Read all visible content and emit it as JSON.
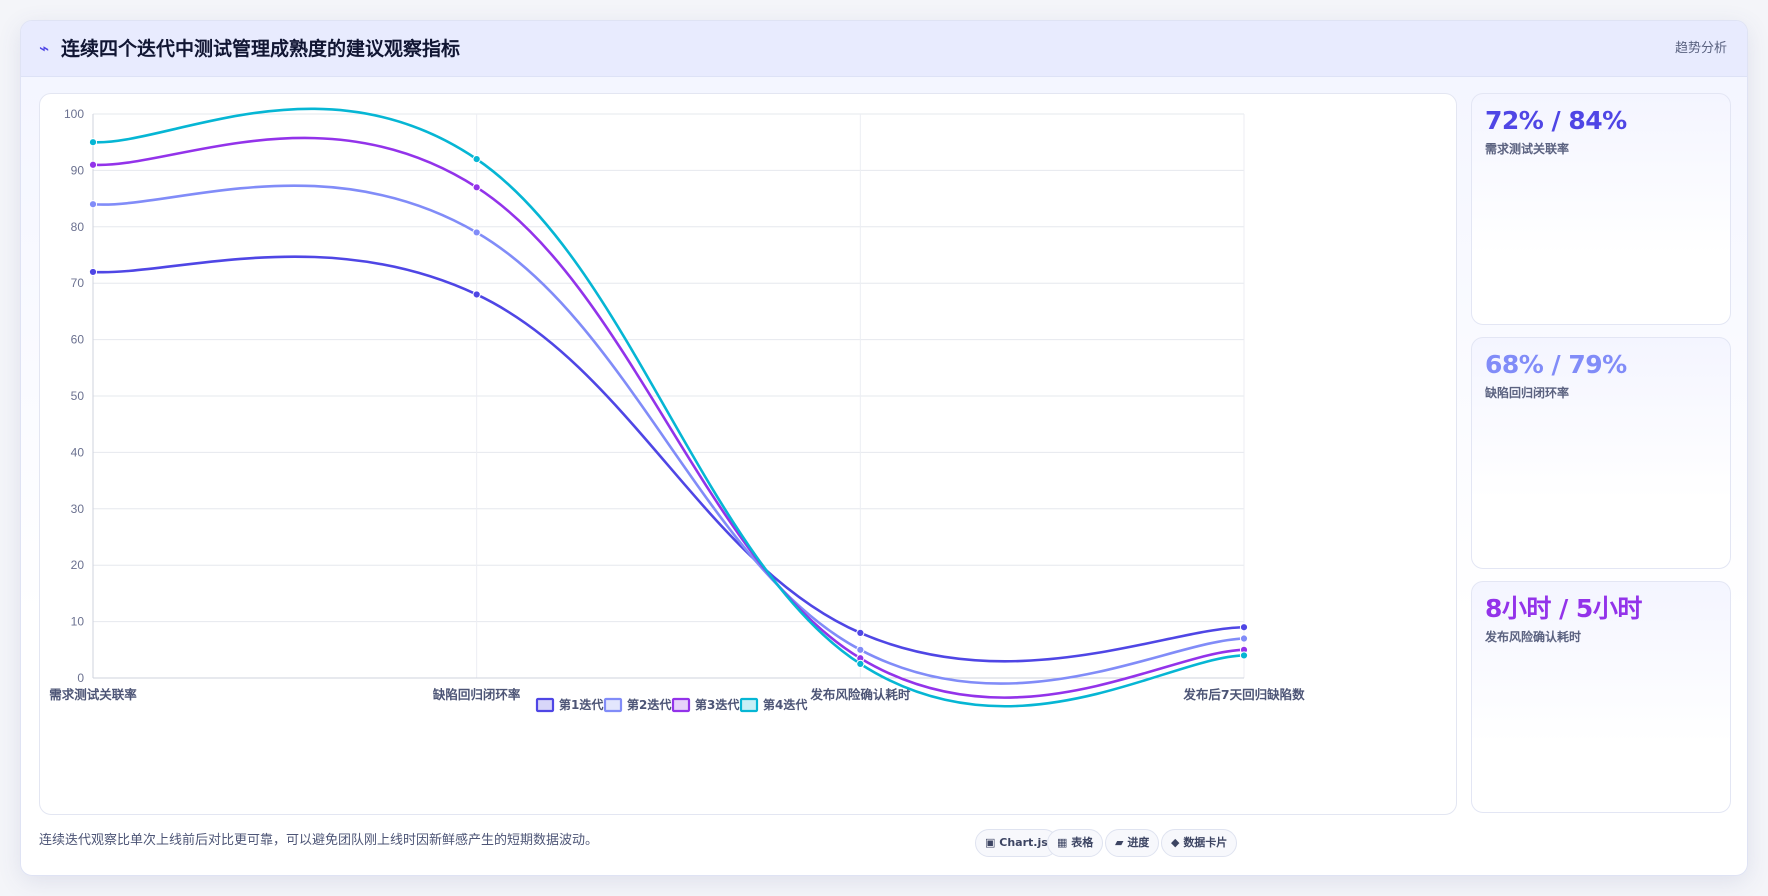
{
  "header": {
    "title": "连续四个迭代中测试管理成熟度的建议观察指标",
    "tag": "趋势分析"
  },
  "chart_data": {
    "type": "line",
    "categories": [
      "需求测试关联率",
      "缺陷回归闭环率",
      "发布风险确认耗时",
      "发布后7天回归缺陷数"
    ],
    "ylim": [
      0,
      100
    ],
    "yticks": [
      0,
      10,
      20,
      30,
      40,
      50,
      60,
      70,
      80,
      90,
      100
    ],
    "grid": true,
    "legend_position": "bottom",
    "series": [
      {
        "name": "第1迭代",
        "values": [
          72,
          68,
          8,
          9
        ],
        "color": "#4f46e5"
      },
      {
        "name": "第2迭代",
        "values": [
          84,
          79,
          5,
          7
        ],
        "color": "#818cf8"
      },
      {
        "name": "第3迭代",
        "values": [
          91,
          87,
          3.5,
          5
        ],
        "color": "#9333ea"
      },
      {
        "name": "第4迭代",
        "values": [
          95,
          92,
          2.5,
          4
        ],
        "color": "#06b6d4"
      }
    ]
  },
  "kpis": [
    {
      "value": "72% / 84%",
      "label": "需求测试关联率",
      "color": "#4f46e5"
    },
    {
      "value": "68% / 79%",
      "label": "缺陷回归闭环率",
      "color": "#818cf8"
    },
    {
      "value": "8小时 / 5小时",
      "label": "发布风险确认耗时",
      "color": "#9333ea"
    }
  ],
  "footer": {
    "note": "连续迭代观察比单次上线前后对比更可靠，可以避免团队刚上线时因新鲜感产生的短期数据波动。"
  },
  "chips": [
    {
      "icon": "▣",
      "label": "Chart.js",
      "icon_name": "chart-icon"
    },
    {
      "icon": "▦",
      "label": "表格",
      "icon_name": "table-icon"
    },
    {
      "icon": "▰",
      "label": "进度",
      "icon_name": "progress-icon"
    },
    {
      "icon": "◆",
      "label": "数据卡片",
      "icon_name": "diamond-icon"
    }
  ]
}
